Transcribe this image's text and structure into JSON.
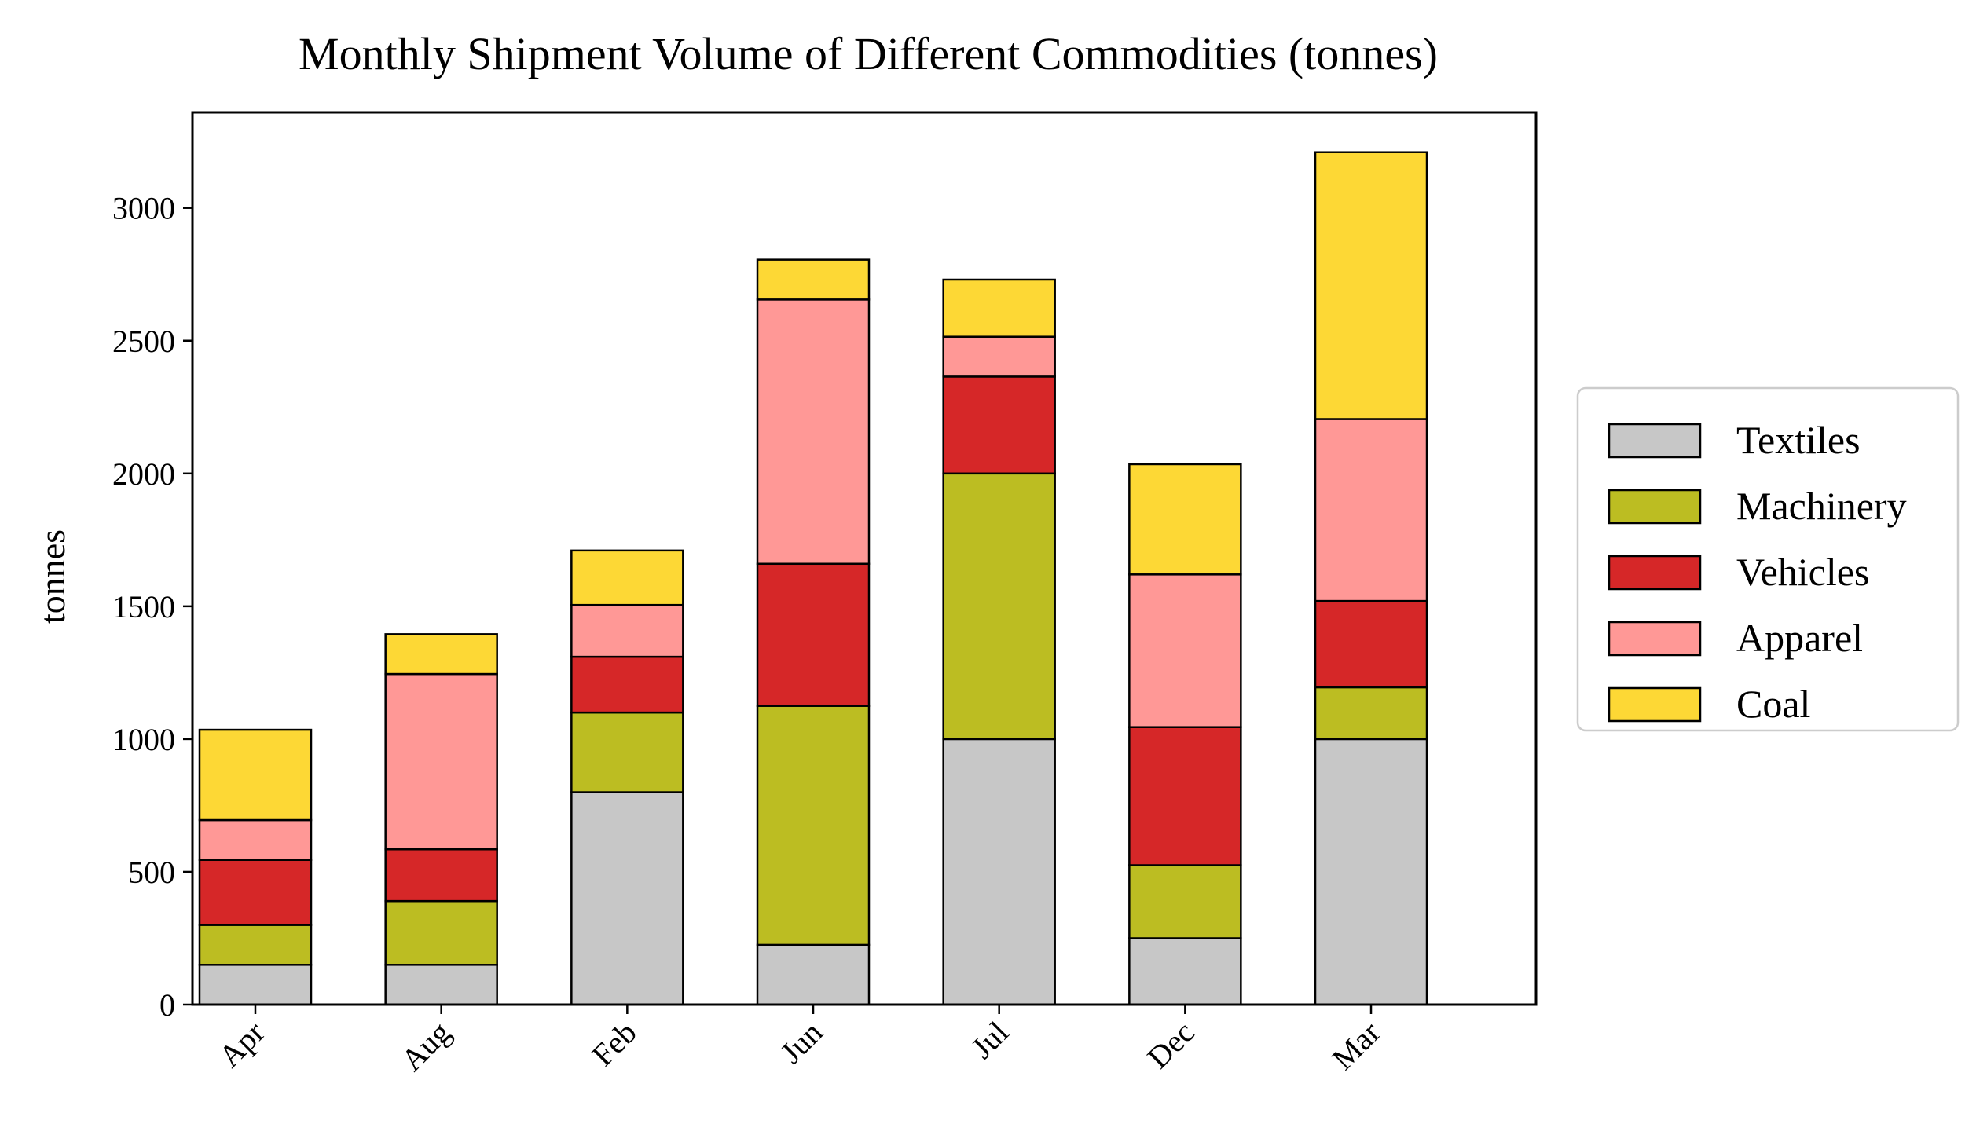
{
  "chart_data": {
    "type": "bar",
    "stacked": true,
    "title": "Monthly Shipment Volume of Different Commodities (tonnes)",
    "xlabel": "",
    "ylabel": "tonnes",
    "categories": [
      "Apr",
      "Aug",
      "Feb",
      "Jun",
      "Jul",
      "Dec",
      "Mar"
    ],
    "ylim": [
      0,
      3360
    ],
    "yticks": [
      0,
      500,
      1000,
      1500,
      2000,
      2500,
      3000
    ],
    "grid": false,
    "legend_position": "right",
    "series": [
      {
        "name": "Textiles",
        "color": "#c7c7c7",
        "values": [
          150,
          150,
          800,
          225,
          1000,
          250,
          1000
        ]
      },
      {
        "name": "Machinery",
        "color": "#bcbd22",
        "values": [
          150,
          240,
          300,
          900,
          1000,
          275,
          195
        ]
      },
      {
        "name": "Vehicles",
        "color": "#d62728",
        "values": [
          245,
          195,
          210,
          535,
          365,
          520,
          325
        ]
      },
      {
        "name": "Apparel",
        "color": "#ff9896",
        "values": [
          150,
          660,
          195,
          995,
          150,
          575,
          685
        ]
      },
      {
        "name": "Coal",
        "color": "#fdd835",
        "values": [
          340,
          150,
          205,
          150,
          215,
          415,
          1005
        ]
      }
    ]
  }
}
